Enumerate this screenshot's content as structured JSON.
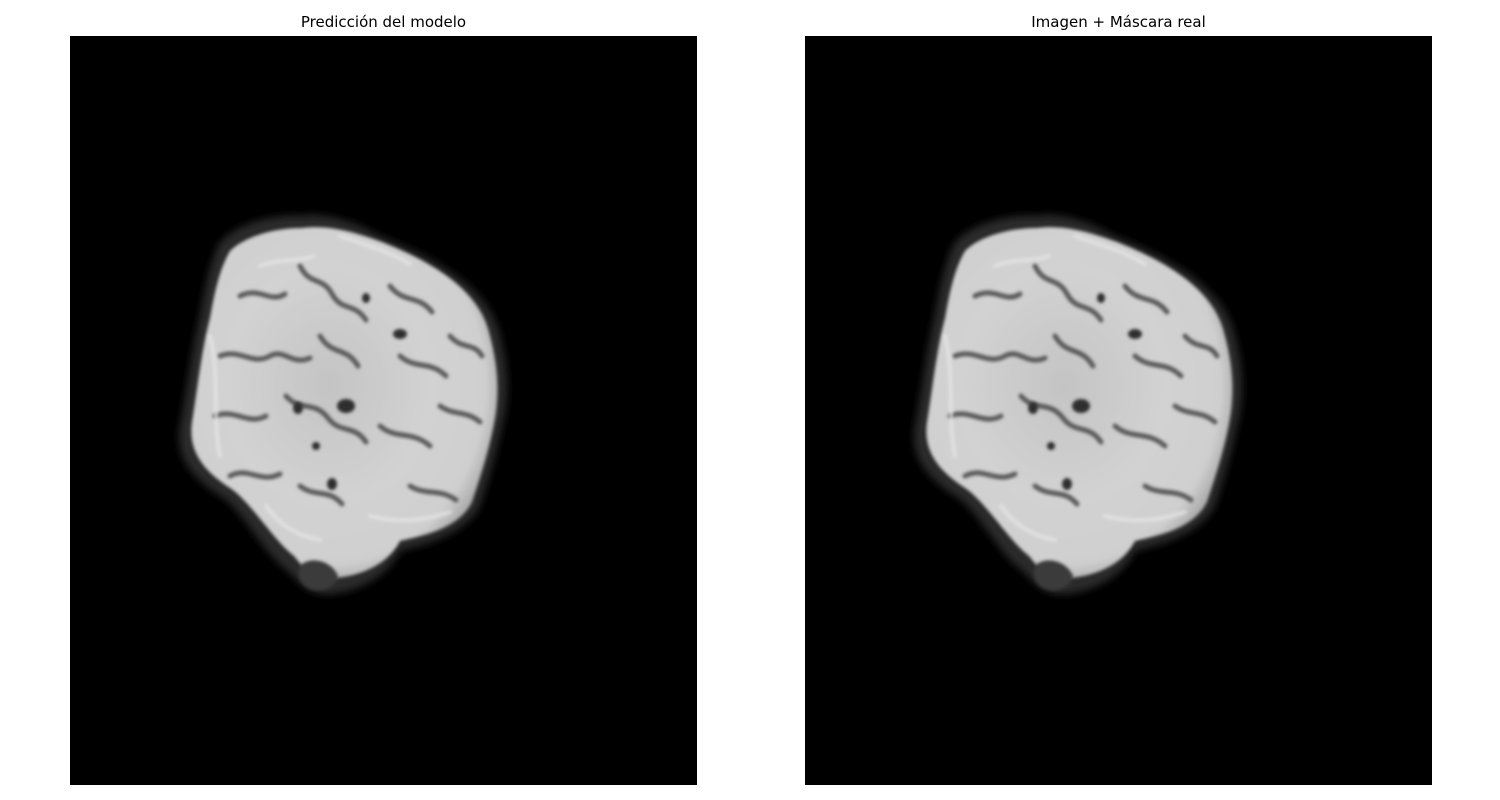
{
  "figure": {
    "background_color": "#ffffff",
    "image_background_color": "#000000",
    "panels": [
      {
        "id": "prediction",
        "title": "Predicción del modelo",
        "colormap": "gray"
      },
      {
        "id": "image-mask",
        "title": "Imagen + Máscara real",
        "colormap": "gray"
      }
    ]
  }
}
